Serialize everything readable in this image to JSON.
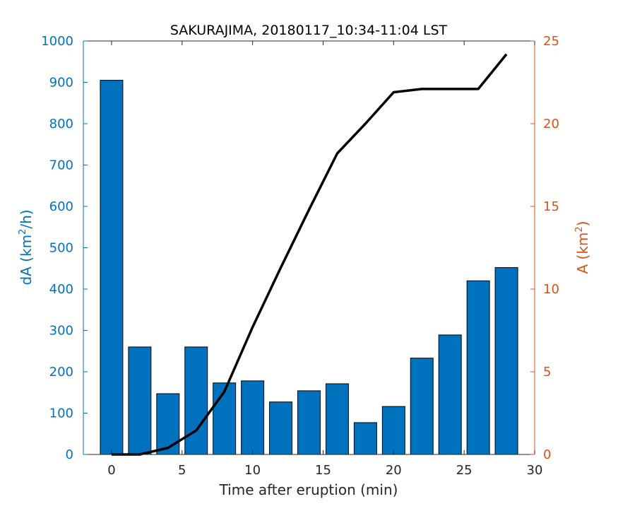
{
  "chart_data": {
    "type": "bar",
    "title": "SAKURAJIMA, 20180117_10:34-11:04 LST",
    "xlabel": "Time after eruption (min)",
    "ylabel_left": {
      "text": "dA (km",
      "sup": "2",
      "suffix": "/h)"
    },
    "ylabel_right": {
      "text": "A (km",
      "sup": "2",
      "suffix": ")"
    },
    "xlim": [
      -2,
      30
    ],
    "xticks": [
      0,
      5,
      10,
      15,
      20,
      25,
      30
    ],
    "ylim_left": [
      0,
      1000
    ],
    "yticks_left": [
      0,
      100,
      200,
      300,
      400,
      500,
      600,
      700,
      800,
      900,
      1000
    ],
    "ylim_right": [
      0,
      25
    ],
    "yticks_right": [
      0,
      5,
      10,
      15,
      20,
      25
    ],
    "grid": false,
    "series": [
      {
        "type": "bar",
        "axis": "left",
        "color": "#0072BD",
        "x": [
          0,
          2,
          4,
          6,
          8,
          10,
          12,
          14,
          16,
          18,
          20,
          22,
          24,
          26,
          28
        ],
        "values": [
          905,
          260,
          147,
          260,
          173,
          178,
          127,
          154,
          171,
          77,
          116,
          233,
          289,
          420,
          452
        ]
      },
      {
        "type": "line",
        "axis": "right",
        "color": "#000000",
        "x": [
          0,
          2,
          4,
          6,
          8,
          10,
          12,
          14,
          16,
          18,
          20,
          22,
          24,
          26,
          28
        ],
        "values": [
          0,
          0,
          0.4,
          1.45,
          3.8,
          7.7,
          11.3,
          14.8,
          18.2,
          20.0,
          21.9,
          22.1,
          22.1,
          22.1,
          24.2
        ]
      }
    ],
    "colors": {
      "left_axis": "#0072BD",
      "right_axis": "#D95319",
      "bottom_axis": "#262626"
    }
  }
}
